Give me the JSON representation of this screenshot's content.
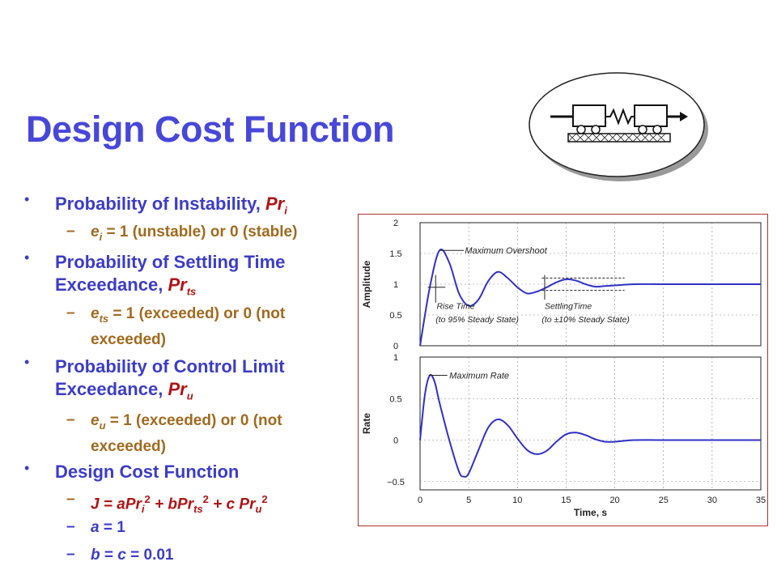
{
  "slide": {
    "title": "Design Cost Function"
  },
  "bullets": [
    {
      "text": "Probability of Instability, ",
      "sym": "Pr",
      "sub": "i"
    },
    {
      "text1": "Probability of Settling Time",
      "text2": "Exceedance, ",
      "sym": "Pr",
      "sub": "ts"
    },
    {
      "text1": "Probability of Control Limit",
      "text2": "Exceedance, ",
      "sym": "Pr",
      "sub": "u"
    },
    {
      "text": "Design Cost Function"
    }
  ],
  "subs": {
    "instability": {
      "var": "e",
      "sub": "i",
      "rest": " = 1 (unstable) or 0 (stable)"
    },
    "settling": {
      "var": "e",
      "sub": "ts",
      "rest": " = 1 (exceeded) or 0 (not",
      "rest2": "exceeded)"
    },
    "control": {
      "var": "e",
      "sub": "u",
      "rest": " = 1 (exceeded) or 0 (not",
      "rest2": "exceeded)"
    },
    "cost": {
      "J": "J",
      "eq": " = a",
      "Pr": "Pr",
      "i": "i",
      "two": "2",
      "plus_b": " + b",
      "ts": "ts",
      "plus_c": " + c ",
      "u": "u"
    },
    "a_eq": {
      "var": "a",
      "rest": " = 1"
    },
    "bc_eq": {
      "var": "b",
      "mid": " = ",
      "var2": "c",
      "rest": " = 0.01"
    }
  },
  "chart_data": [
    {
      "type": "line",
      "ylabel": "Amplitude",
      "ylim": [
        0,
        2
      ],
      "yticks": [
        "2",
        "1.5",
        "1",
        "0.5",
        "0"
      ],
      "xlim": [
        0,
        35
      ],
      "annotations": [
        "Maximum Overshoot",
        "Rise Time",
        "(to 95% Steady State)",
        "SettlingTime",
        "(to ±10% Steady State)"
      ],
      "series": [
        {
          "x": [
            0,
            1,
            2,
            3,
            4,
            5,
            6,
            7,
            8,
            9,
            10,
            11,
            12,
            13,
            14,
            15,
            16,
            17,
            18,
            19,
            20,
            22,
            25,
            30,
            35
          ],
          "y": [
            0,
            0.95,
            1.55,
            1.35,
            0.85,
            0.65,
            0.75,
            1.05,
            1.2,
            1.1,
            0.95,
            0.85,
            0.88,
            0.95,
            1.03,
            1.08,
            1.06,
            1.0,
            0.96,
            0.97,
            0.98,
            1.0,
            1.0,
            1.0,
            1.0
          ]
        }
      ]
    },
    {
      "type": "line",
      "ylabel": "Rate",
      "xlabel": "Time, s",
      "ylim": [
        -0.6,
        1
      ],
      "yticks": [
        "1",
        "0.5",
        "0",
        "−0.5"
      ],
      "xticks": [
        "0",
        "5",
        "10",
        "15",
        "20",
        "25",
        "30",
        "35"
      ],
      "annotations": [
        "Maximum Rate"
      ],
      "series": [
        {
          "x": [
            0,
            0.5,
            1,
            1.5,
            2,
            3,
            4,
            4.5,
            5,
            6,
            7,
            8,
            9,
            10,
            11,
            12,
            13,
            14,
            15,
            16,
            17,
            18,
            19,
            20,
            22,
            25,
            30,
            35
          ],
          "y": [
            0,
            0.55,
            0.78,
            0.7,
            0.45,
            0.0,
            -0.38,
            -0.44,
            -0.4,
            -0.12,
            0.15,
            0.25,
            0.18,
            0.02,
            -0.12,
            -0.17,
            -0.13,
            -0.02,
            0.07,
            0.09,
            0.06,
            0.01,
            -0.02,
            -0.02,
            0.0,
            0.0,
            0.0,
            0.0
          ]
        }
      ]
    }
  ]
}
